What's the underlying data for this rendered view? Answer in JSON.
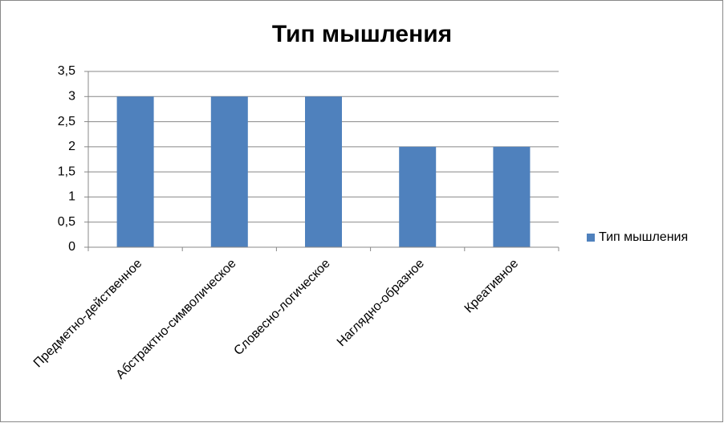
{
  "chart_data": {
    "type": "bar",
    "title": "Тип мышления",
    "categories": [
      "Предметно-действенное",
      "Абстрактно-символическое",
      "Словесно-логическое",
      "Наглядно-образное",
      "Креативное"
    ],
    "series": [
      {
        "name": "Тип мышления",
        "color": "#4f81bd",
        "values": [
          3,
          3,
          3,
          2,
          2
        ]
      }
    ],
    "ylim": [
      0,
      3.5
    ],
    "yticks": [
      0,
      {
        "value": 0.5,
        "label": "0,5"
      },
      1,
      {
        "value": 1.5,
        "label": "1,5"
      },
      2,
      {
        "value": 2.5,
        "label": "2,5"
      },
      3,
      {
        "value": 3.5,
        "label": "3,5"
      }
    ],
    "grid": true,
    "legend": "right"
  }
}
